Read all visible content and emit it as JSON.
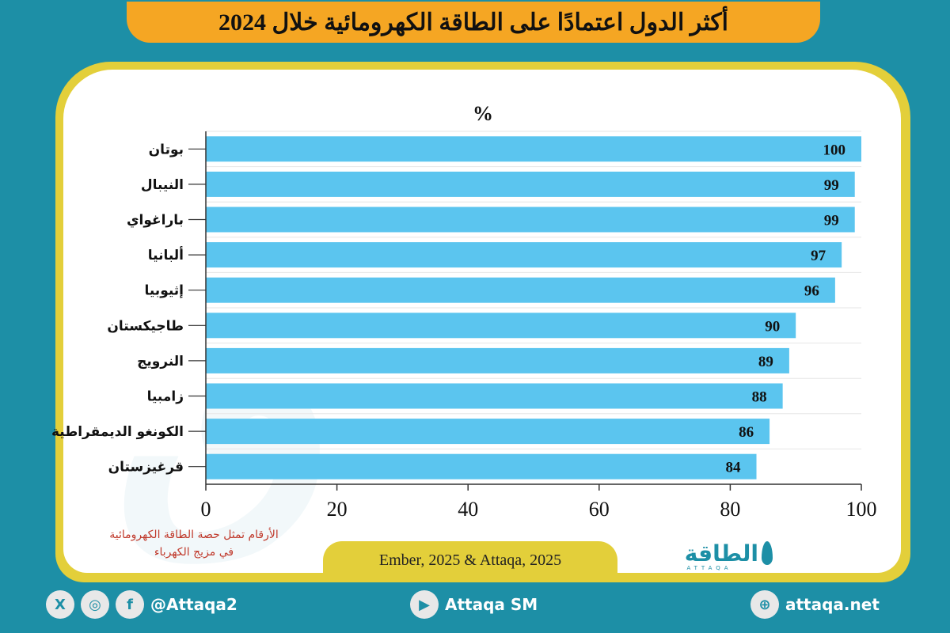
{
  "title": "أكثر الدول اعتمادًا على الطاقة الكهرومائية خلال 2024",
  "chart_data": {
    "type": "bar",
    "orientation": "horizontal",
    "unit_label": "%",
    "categories": [
      "بوتان",
      "النيبال",
      "باراغواي",
      "ألبانيا",
      "إثيوبيا",
      "طاجيكستان",
      "النرويج",
      "زامبيا",
      "الكونغو الديمقراطية",
      "قرغيزستان"
    ],
    "values": [
      100,
      99,
      99,
      97,
      96,
      90,
      89,
      88,
      86,
      84
    ],
    "value_labels": [
      "100",
      "99",
      "99",
      "97",
      "96",
      "90",
      "89",
      "88",
      "86",
      "84"
    ],
    "xlim": [
      0,
      100
    ],
    "xticks": [
      "0",
      "20",
      "40",
      "60",
      "80",
      "100"
    ],
    "bar_color": "#5bc5ef",
    "grid": true
  },
  "note": {
    "line1": "الأرقام تمثل حصة الطاقة الكهرومائية",
    "line2": "في مزيج الكهرباء"
  },
  "source": "Ember, 2025 & Attaqa, 2025",
  "logo": {
    "text": "الطاقة",
    "sub": "ATTAQA"
  },
  "footer": {
    "social_icons": [
      "x-icon",
      "instagram-icon",
      "facebook-icon"
    ],
    "social_handle": "@Attaqa2",
    "youtube_label": "Attaqa SM",
    "website": "attaqa.net"
  },
  "colors": {
    "background": "#1d8fa6",
    "title_bar": "#f5a623",
    "frame": "#e3cf3a",
    "note": "#c0392b"
  }
}
